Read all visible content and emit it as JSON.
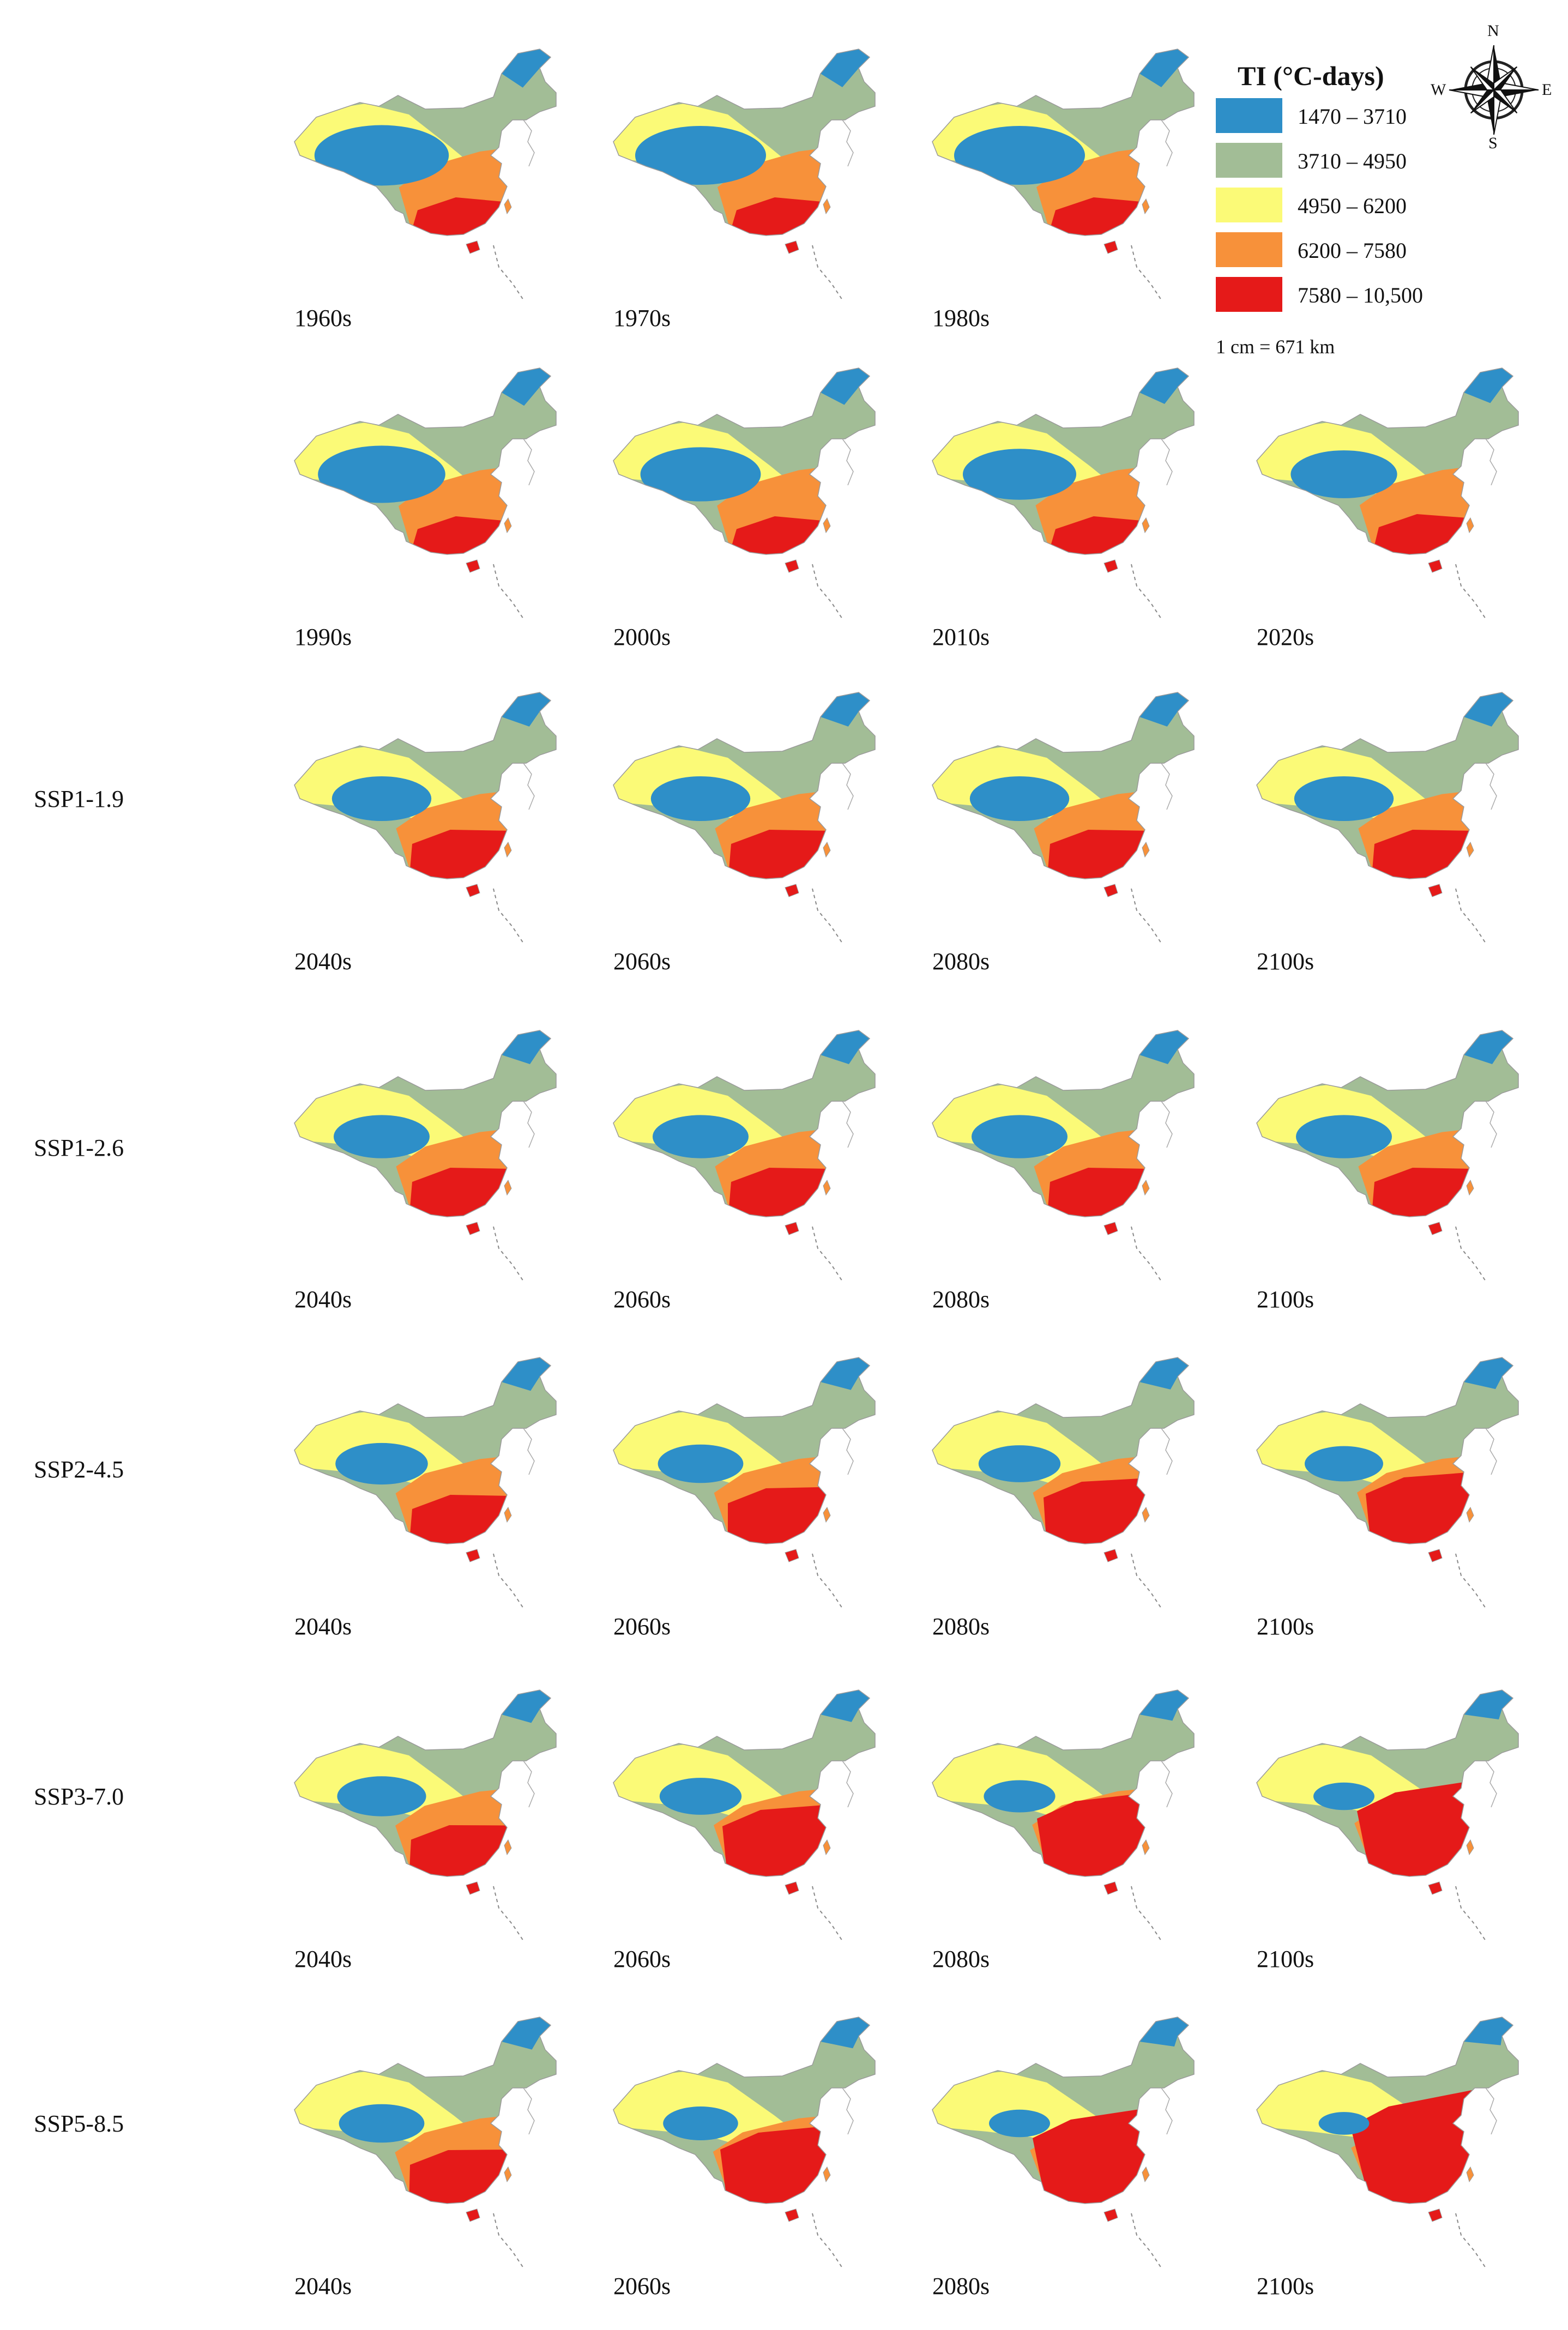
{
  "legend": {
    "title": "TI (°C-days)",
    "classes": [
      {
        "label": "1470 – 3710",
        "color": "#2e8fc8"
      },
      {
        "label": "3710 – 4950",
        "color": "#a2bd96"
      },
      {
        "label": "4950 – 6200",
        "color": "#fbfa77"
      },
      {
        "label": "6200 – 7580",
        "color": "#f7913a"
      },
      {
        "label": "7580 – 10,500",
        "color": "#e51a19"
      }
    ],
    "scale": "1 cm = 671 km"
  },
  "compass": {
    "n": "N",
    "s": "S",
    "e": "E",
    "w": "W"
  },
  "rows": [
    {
      "label": "",
      "panels": [
        {
          "decade": "1960s",
          "shares": [
            0.26,
            0.36,
            0.16,
            0.15,
            0.07
          ]
        },
        {
          "decade": "1970s",
          "shares": [
            0.25,
            0.36,
            0.16,
            0.16,
            0.07
          ]
        },
        {
          "decade": "1980s",
          "shares": [
            0.25,
            0.36,
            0.16,
            0.16,
            0.07
          ]
        }
      ]
    },
    {
      "label": "",
      "panels": [
        {
          "decade": "1990s",
          "shares": [
            0.24,
            0.36,
            0.17,
            0.16,
            0.07
          ]
        },
        {
          "decade": "2000s",
          "shares": [
            0.22,
            0.36,
            0.18,
            0.17,
            0.07
          ]
        },
        {
          "decade": "2010s",
          "shares": [
            0.2,
            0.36,
            0.19,
            0.18,
            0.07
          ]
        },
        {
          "decade": "2020s",
          "shares": [
            0.18,
            0.37,
            0.19,
            0.18,
            0.08
          ]
        }
      ]
    },
    {
      "label": "SSP1-1.9",
      "panels": [
        {
          "decade": "2040s",
          "shares": [
            0.16,
            0.34,
            0.2,
            0.18,
            0.12
          ]
        },
        {
          "decade": "2060s",
          "shares": [
            0.16,
            0.34,
            0.2,
            0.18,
            0.12
          ]
        },
        {
          "decade": "2080s",
          "shares": [
            0.16,
            0.34,
            0.2,
            0.18,
            0.12
          ]
        },
        {
          "decade": "2100s",
          "shares": [
            0.16,
            0.34,
            0.2,
            0.18,
            0.12
          ]
        }
      ]
    },
    {
      "label": "SSP1-2.6",
      "panels": [
        {
          "decade": "2040s",
          "shares": [
            0.15,
            0.34,
            0.21,
            0.18,
            0.12
          ]
        },
        {
          "decade": "2060s",
          "shares": [
            0.15,
            0.34,
            0.21,
            0.18,
            0.12
          ]
        },
        {
          "decade": "2080s",
          "shares": [
            0.15,
            0.34,
            0.21,
            0.18,
            0.12
          ]
        },
        {
          "decade": "2100s",
          "shares": [
            0.15,
            0.34,
            0.21,
            0.18,
            0.12
          ]
        }
      ]
    },
    {
      "label": "SSP2-4.5",
      "panels": [
        {
          "decade": "2040s",
          "shares": [
            0.14,
            0.34,
            0.21,
            0.19,
            0.12
          ]
        },
        {
          "decade": "2060s",
          "shares": [
            0.12,
            0.34,
            0.21,
            0.18,
            0.15
          ]
        },
        {
          "decade": "2080s",
          "shares": [
            0.11,
            0.33,
            0.22,
            0.16,
            0.18
          ]
        },
        {
          "decade": "2100s",
          "shares": [
            0.1,
            0.33,
            0.22,
            0.15,
            0.2
          ]
        }
      ]
    },
    {
      "label": "SSP3-7.0",
      "panels": [
        {
          "decade": "2040s",
          "shares": [
            0.13,
            0.34,
            0.21,
            0.19,
            0.13
          ]
        },
        {
          "decade": "2060s",
          "shares": [
            0.11,
            0.32,
            0.22,
            0.15,
            0.2
          ]
        },
        {
          "decade": "2080s",
          "shares": [
            0.08,
            0.28,
            0.27,
            0.13,
            0.24
          ]
        },
        {
          "decade": "2100s",
          "shares": [
            0.05,
            0.22,
            0.3,
            0.15,
            0.28
          ]
        }
      ]
    },
    {
      "label": "SSP5-8.5",
      "panels": [
        {
          "decade": "2040s",
          "shares": [
            0.12,
            0.33,
            0.22,
            0.19,
            0.14
          ]
        },
        {
          "decade": "2060s",
          "shares": [
            0.09,
            0.28,
            0.26,
            0.15,
            0.22
          ]
        },
        {
          "decade": "2080s",
          "shares": [
            0.05,
            0.22,
            0.3,
            0.15,
            0.28
          ]
        },
        {
          "decade": "2100s",
          "shares": [
            0.02,
            0.14,
            0.32,
            0.18,
            0.34
          ]
        }
      ]
    }
  ]
}
